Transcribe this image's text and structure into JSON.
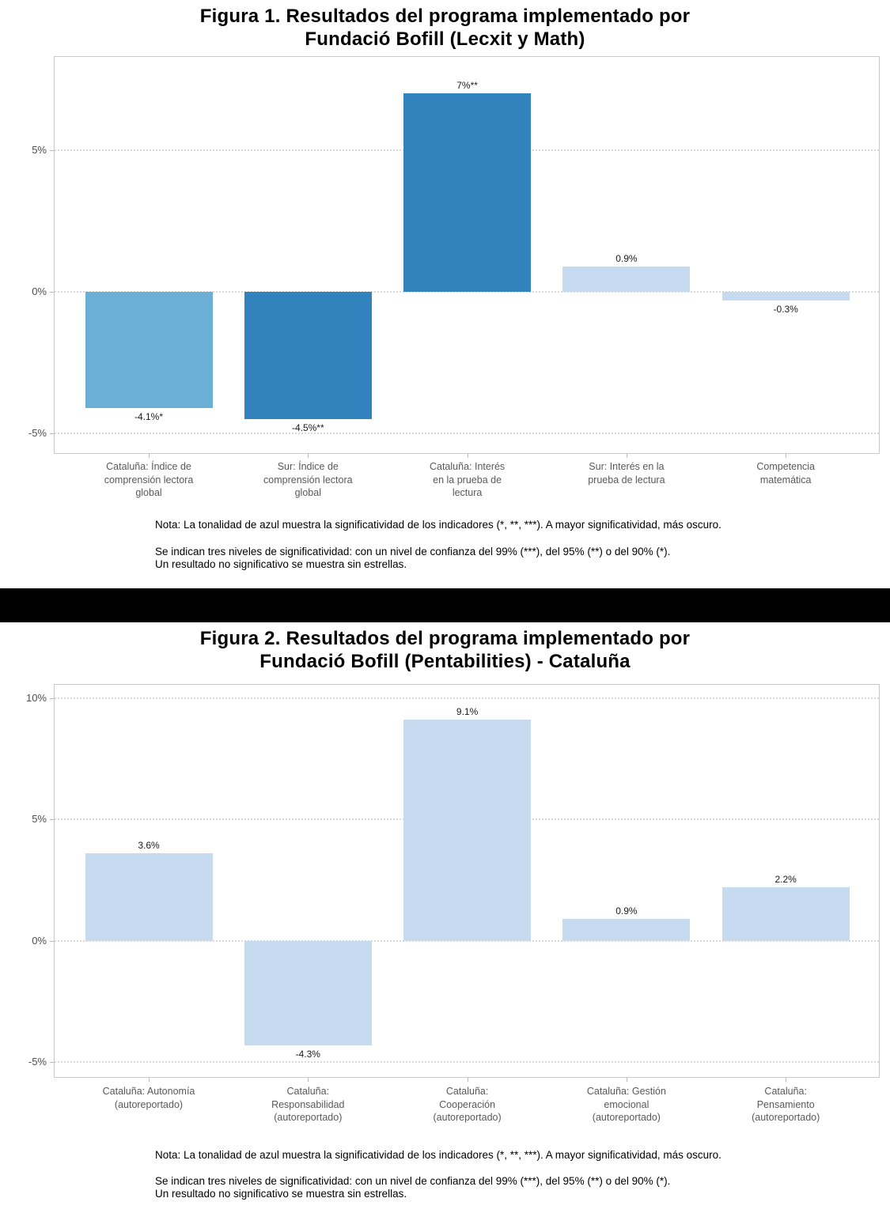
{
  "significance_palette": {
    "no_stars": "#C6DBEF",
    "one_star": "#6BAED6",
    "two_stars": "#3182BD"
  },
  "chart_data": [
    {
      "type": "bar",
      "title": "Figura 1. Resultados del programa implementado por\nFundació Bofill (Lecxit y Math)",
      "categories": [
        "Cataluña: Índice de\ncomprensión lectora\nglobal",
        "Sur: Índice de\ncomprensión lectora\nglobal",
        "Cataluña: Interés\nen la prueba de\nlectura",
        "Sur: Interés en la\nprueba de lectura",
        "Competencia\nmatemática"
      ],
      "values": [
        -4.1,
        -4.5,
        7,
        0.9,
        -0.3
      ],
      "value_labels": [
        "-4.1%*",
        "-4.5%**",
        "7%**",
        "0.9%",
        "-0.3%"
      ],
      "bar_colors": [
        "#6BAED6",
        "#3182BD",
        "#3182BD",
        "#C6DBEF",
        "#C6DBEF"
      ],
      "xlabel": "",
      "ylabel": "",
      "ylim": [
        -5.73,
        8.32
      ],
      "yticks": [
        5,
        0,
        -5
      ],
      "ytick_labels": [
        "5%",
        "0%",
        "-5%"
      ],
      "grid": "horizontal-dotted",
      "legend": "none",
      "note_line1": "Nota: La tonalidad de azul muestra la significatividad de los indicadores (*, **, ***). A mayor significatividad, más oscuro.",
      "note_line2": "Se indican tres niveles de significatividad: con un nivel de confianza del 99% (***), del 95% (**) o del 90% (*).\nUn resultado no significativo se muestra sin estrellas."
    },
    {
      "type": "bar",
      "title": "Figura 2. Resultados del programa implementado por\nFundació Bofill (Pentabilities) - Cataluña",
      "categories": [
        "Cataluña: Autonomía\n(autoreportado)",
        "Cataluña:\nResponsabilidad\n(autoreportado)",
        "Cataluña:\nCooperación\n(autoreportado)",
        "Cataluña: Gestión\nemocional\n(autoreportado)",
        "Cataluña:\nPensamiento\n(autoreportado)"
      ],
      "values": [
        3.6,
        -4.3,
        9.1,
        0.9,
        2.2
      ],
      "value_labels": [
        "3.6%",
        "-4.3%",
        "9.1%",
        "0.9%",
        "2.2%"
      ],
      "bar_colors": [
        "#C6DBEF",
        "#C6DBEF",
        "#C6DBEF",
        "#C6DBEF",
        "#C6DBEF"
      ],
      "xlabel": "",
      "ylabel": "",
      "ylim": [
        -5.65,
        10.57
      ],
      "yticks": [
        10,
        5,
        0,
        -5
      ],
      "ytick_labels": [
        "10%",
        "5%",
        "0%",
        "-5%"
      ],
      "grid": "horizontal-dotted",
      "legend": "none",
      "note_line1": "Nota: La tonalidad de azul muestra la significatividad de los indicadores (*, **, ***). A mayor significatividad, más oscuro.",
      "note_line2": "Se indican tres niveles de significatividad: con un nivel de confianza del 99% (***), del 95% (**) o del 90% (*).\nUn resultado no significativo se muestra sin estrellas."
    }
  ]
}
